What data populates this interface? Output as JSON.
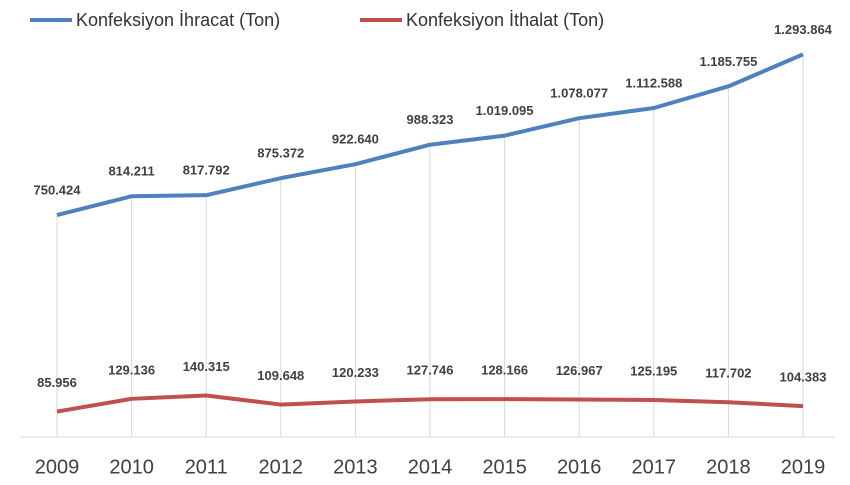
{
  "chart_data": {
    "type": "line",
    "categories": [
      "2009",
      "2010",
      "2011",
      "2012",
      "2013",
      "2014",
      "2015",
      "2016",
      "2017",
      "2018",
      "2019"
    ],
    "series": [
      {
        "name": "Konfeksiyon İhracat (Ton)",
        "color": "#4f81bd",
        "values": [
          750424,
          814211,
          817792,
          875372,
          922640,
          988323,
          1019095,
          1078077,
          1112588,
          1185755,
          1293864
        ],
        "value_labels": [
          "750.424",
          "814.211",
          "817.792",
          "875.372",
          "922.640",
          "988.323",
          "1.019.095",
          "1.078.077",
          "1.112.588",
          "1.185.755",
          "1.293.864"
        ]
      },
      {
        "name": "Konfeksiyon İthalat (Ton)",
        "color": "#c0504d",
        "values": [
          85956,
          129136,
          140315,
          109648,
          120233,
          127746,
          128166,
          126967,
          125195,
          117702,
          104383
        ],
        "value_labels": [
          "85.956",
          "129.136",
          "140.315",
          "109.648",
          "120.233",
          "127.746",
          "128.166",
          "126.967",
          "125.195",
          "117.702",
          "104.383"
        ]
      }
    ],
    "ylim": [
      0,
      1400000
    ],
    "legend": "top"
  }
}
